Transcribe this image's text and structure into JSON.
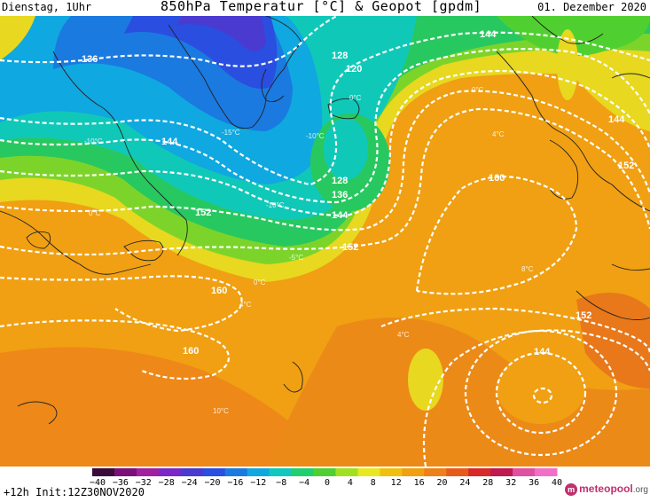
{
  "header": {
    "left": "Dienstag, 1Uhr",
    "title": "850hPa Temperatur [°C] & Geopot [gpdm]",
    "right": "01. Dezember 2020"
  },
  "footer": {
    "run": "+12h Init:12Z30NOV2020",
    "brand": "meteopool",
    "brand_suffix": ".org"
  },
  "legend": {
    "ticks": [
      "−40",
      "−36",
      "−32",
      "−28",
      "−24",
      "−20",
      "−16",
      "−12",
      "−8",
      "−4",
      "0",
      "4",
      "8",
      "12",
      "16",
      "20",
      "24",
      "28",
      "32",
      "36",
      "40"
    ],
    "colors": [
      "#3a0a3a",
      "#7a0f7a",
      "#a020a0",
      "#7a28c8",
      "#4a3ad0",
      "#2a4ee0",
      "#1a7ae0",
      "#10a8e0",
      "#10c8c0",
      "#20d070",
      "#50d030",
      "#a0e020",
      "#e8e820",
      "#f0c010",
      "#f0a010",
      "#ee8018",
      "#e85a1a",
      "#d82828",
      "#c01850",
      "#e050a0",
      "#f070c8"
    ]
  },
  "contour_labels": [
    "136",
    "144",
    "152",
    "160",
    "128",
    "120",
    "128",
    "136",
    "144",
    "152",
    "160",
    "144",
    "152",
    "144",
    "152",
    "160"
  ],
  "temp_labels": [
    "-10°C",
    "-10°C",
    "-10°C",
    "-15°C",
    "0°C",
    "0°C",
    "0°C",
    "0°C",
    "4°C",
    "4°C",
    "4°C",
    "8°C",
    "10°C",
    "-5°C"
  ]
}
